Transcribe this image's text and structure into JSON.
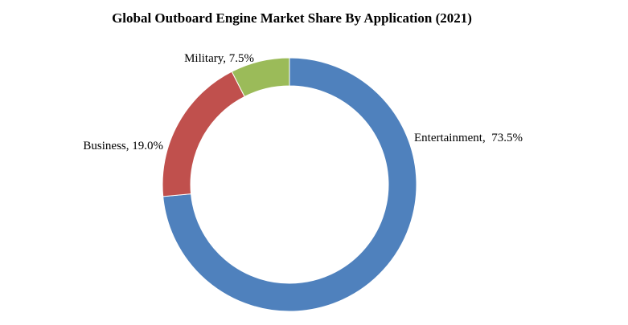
{
  "chart_data": {
    "type": "pie",
    "variant": "donut",
    "title": "Global Outboard Engine Market Share By Application (2021)",
    "unit": "%",
    "start_angle_deg": 0,
    "direction": "clockwise",
    "slices": [
      {
        "label": "Entertainment",
        "value": 73.5,
        "display": "Entertainment,  73.5%",
        "color": "#4F81BD"
      },
      {
        "label": "Business",
        "value": 19.0,
        "display": "Business, 19.0%",
        "color": "#C0504D"
      },
      {
        "label": "Military",
        "value": 7.5,
        "display": "Military, 7.5%",
        "color": "#9BBB59"
      }
    ],
    "legend": "none"
  }
}
